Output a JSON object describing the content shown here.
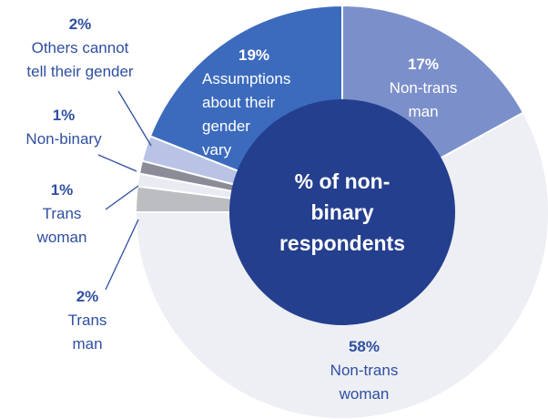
{
  "chart_data": {
    "type": "pie",
    "center_label": "% of non-binary respondents",
    "categories": [
      "Non-trans man",
      "Non-trans woman",
      "Trans man",
      "Trans woman",
      "Non-binary",
      "Others cannot tell their gender",
      "Assumptions about their gender vary"
    ],
    "values": [
      17,
      58,
      2,
      1,
      1,
      2,
      19
    ],
    "value_labels": [
      "17%",
      "58%",
      "2%",
      "1%",
      "1%",
      "2%",
      "19%"
    ],
    "colors": [
      "#7b8fca",
      "#edeff4",
      "#bcbdc1",
      "#e9ebf3",
      "#8b8c98",
      "#b8c3e5",
      "#3c6bbd"
    ],
    "center_color": "#243f8e"
  }
}
